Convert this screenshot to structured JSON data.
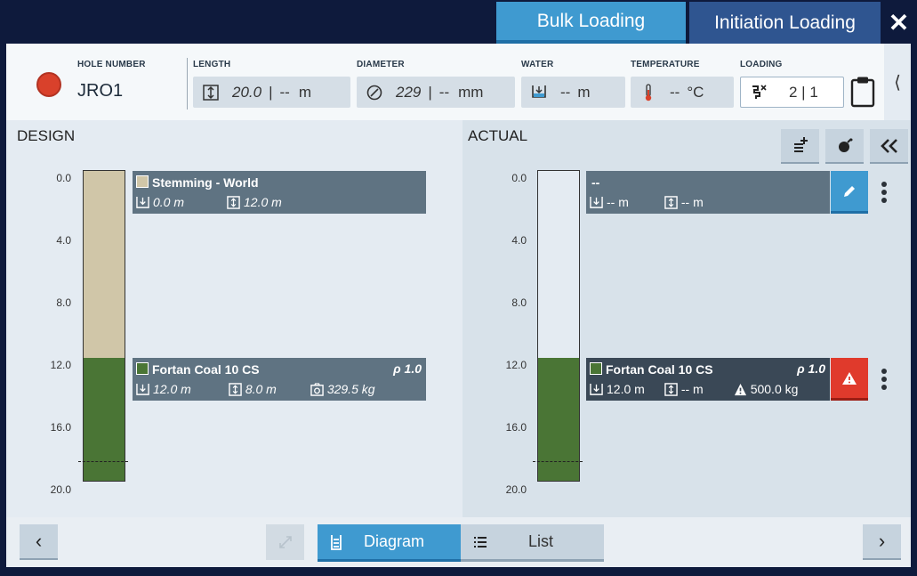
{
  "tabs": [
    {
      "label": "Bulk Loading",
      "active": true
    },
    {
      "label": "Initiation Loading",
      "active": false
    }
  ],
  "close_glyph": "✕",
  "header": {
    "status_color": "#d9412b",
    "hole_number_label": "HOLE NUMBER",
    "hole_number": "JRO1",
    "length_label": "LENGTH",
    "length_value": "20.0",
    "length_sep": "|",
    "length_actual": "--",
    "length_unit": "m",
    "diameter_label": "DIAMETER",
    "diameter_value": "229",
    "diameter_sep": "|",
    "diameter_actual": "--",
    "diameter_unit": "mm",
    "water_label": "WATER",
    "water_value": "--",
    "water_unit": "m",
    "temperature_label": "TEMPERATURE",
    "temperature_value": "--",
    "temperature_unit": "°C",
    "loading_label": "LOADING",
    "loading_value": "2 | 1",
    "side_chevron": "⟨"
  },
  "design": {
    "title": "DESIGN",
    "ticks": [
      "0.0",
      "4.0",
      "8.0",
      "12.0",
      "16.0",
      "20.0"
    ],
    "decks": [
      {
        "name": "Stemming - World",
        "color": "#d0c6a8",
        "top": "0.0 m",
        "length": "12.0 m"
      },
      {
        "name": "Fortan Coal 10 CS",
        "color": "#4a7535",
        "density": "ρ 1.0",
        "top": "12.0 m",
        "length": "8.0 m",
        "mass": "329.5 kg"
      }
    ]
  },
  "actual": {
    "title": "ACTUAL",
    "ticks": [
      "0.0",
      "4.0",
      "8.0",
      "12.0",
      "16.0",
      "20.0"
    ],
    "decks": [
      {
        "name": "--",
        "top": "-- m",
        "length": "-- m"
      },
      {
        "name": "Fortan Coal 10 CS",
        "color": "#4a7535",
        "density": "ρ 1.0",
        "top": "12.0 m",
        "length": "-- m",
        "mass": "500.0 kg"
      }
    ]
  },
  "footer": {
    "prev": "‹",
    "next": "›",
    "diagram_label": "Diagram",
    "list_label": "List"
  },
  "colors": {
    "accent": "#3f9ad0",
    "tab_inactive": "#2f5590",
    "frame": "#0e1a3c",
    "warning": "#e03a2c"
  }
}
